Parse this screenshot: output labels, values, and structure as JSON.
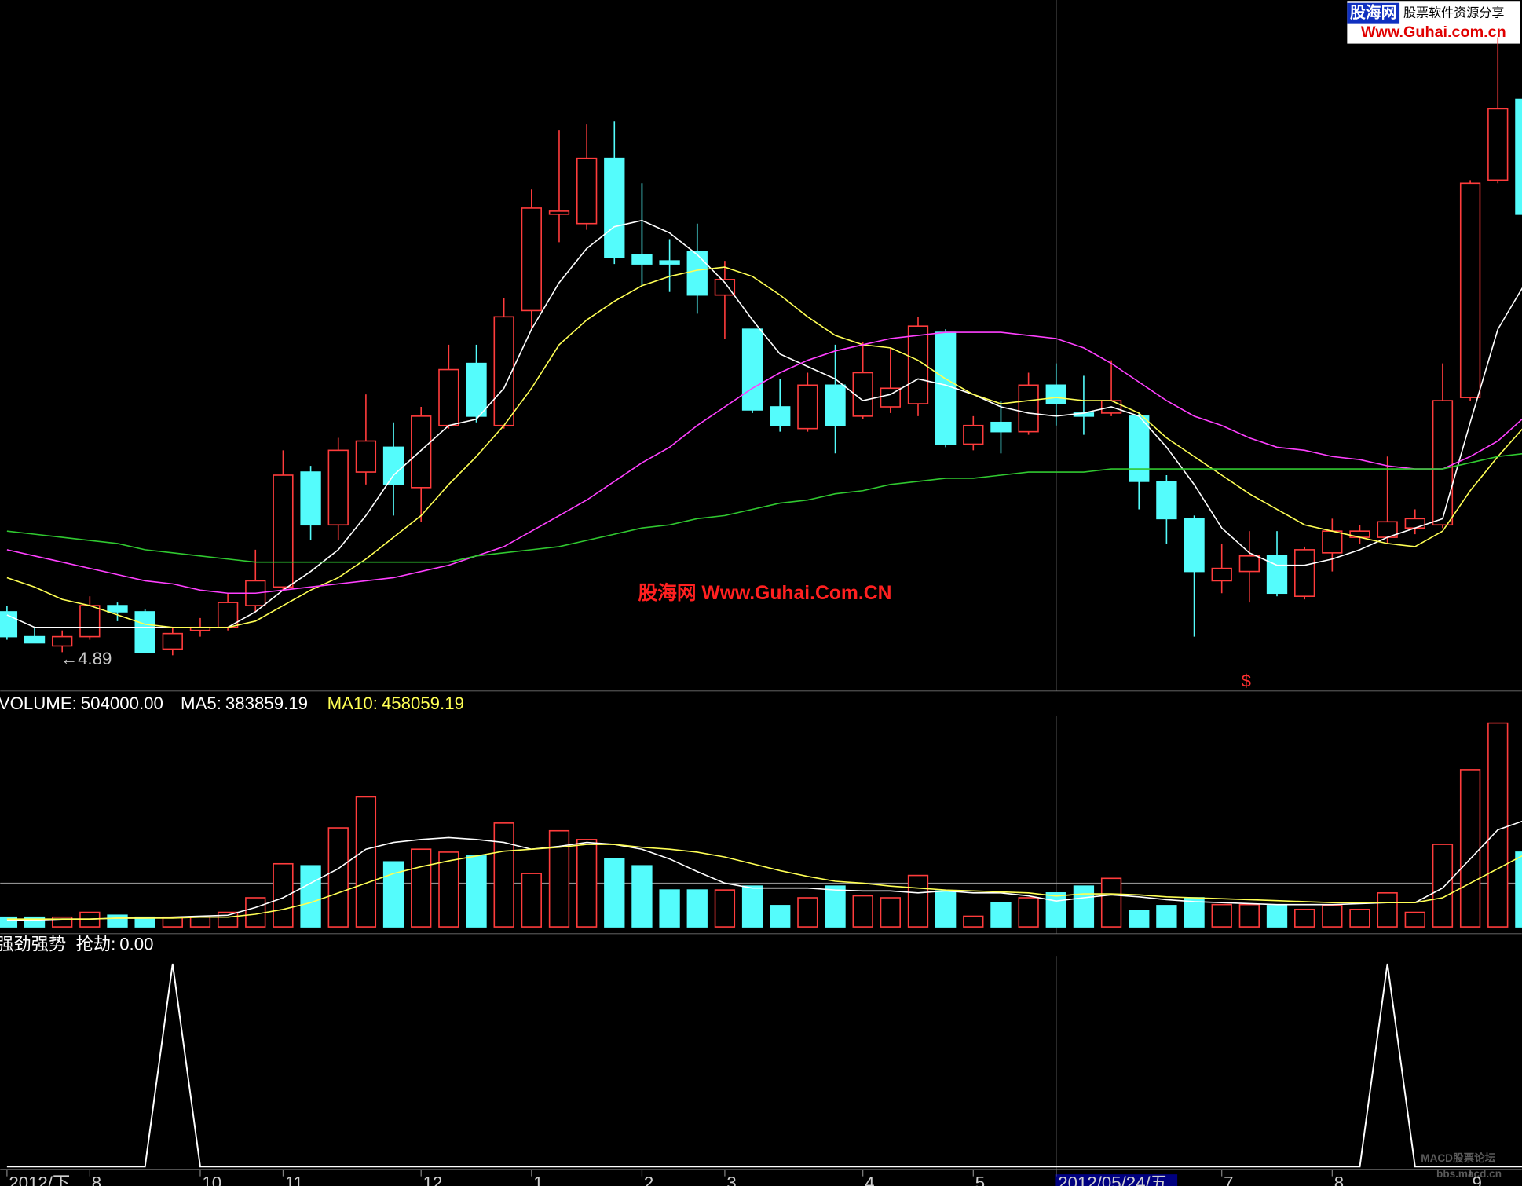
{
  "watermark": "股海网 Www.Guhai.Com.CN",
  "logo": {
    "brand": "股海网",
    "slogan": "股票软件资源分享",
    "url": "Www.Guhai.com.cn"
  },
  "forum": {
    "name": "MACD股票论坛",
    "url": "bbs.macd.cn"
  },
  "chart_data": [
    {
      "type": "candlestick",
      "open": [
        5.03,
        4.95,
        4.92,
        4.95,
        5.05,
        5.03,
        4.91,
        4.97,
        4.98,
        5.05,
        5.11,
        5.48,
        5.31,
        5.48,
        5.56,
        5.43,
        5.63,
        5.83,
        5.63,
        6.0,
        6.31,
        6.28,
        6.49,
        6.18,
        6.16,
        6.19,
        6.05,
        5.94,
        5.69,
        5.62,
        5.76,
        5.66,
        5.69,
        5.7,
        5.93,
        5.57,
        5.64,
        5.61,
        5.76,
        5.67,
        5.67,
        5.66,
        5.45,
        5.33,
        5.13,
        5.16,
        5.21,
        5.08,
        5.22,
        5.27,
        5.27,
        5.3,
        5.31,
        5.72,
        6.42,
        6.68
      ],
      "high": [
        5.05,
        4.98,
        4.97,
        5.08,
        5.06,
        5.04,
        4.98,
        5.01,
        5.09,
        5.23,
        5.55,
        5.5,
        5.59,
        5.73,
        5.64,
        5.69,
        5.89,
        5.89,
        6.04,
        6.39,
        6.58,
        6.6,
        6.61,
        6.41,
        6.23,
        6.28,
        6.16,
        5.94,
        5.78,
        5.8,
        5.89,
        5.9,
        5.88,
        5.98,
        5.94,
        5.66,
        5.71,
        5.8,
        5.83,
        5.79,
        5.84,
        5.67,
        5.47,
        5.34,
        5.25,
        5.29,
        5.29,
        5.24,
        5.33,
        5.31,
        5.53,
        5.36,
        5.83,
        6.42,
        6.88,
        6.69
      ],
      "low": [
        4.94,
        4.93,
        4.9,
        4.94,
        5.0,
        4.9,
        4.89,
        4.95,
        4.97,
        5.03,
        5.1,
        5.26,
        5.26,
        5.44,
        5.34,
        5.32,
        5.62,
        5.64,
        5.62,
        5.94,
        6.22,
        6.26,
        6.15,
        6.08,
        6.06,
        5.99,
        5.91,
        5.67,
        5.61,
        5.61,
        5.54,
        5.65,
        5.67,
        5.66,
        5.56,
        5.55,
        5.54,
        5.6,
        5.63,
        5.6,
        5.66,
        5.36,
        5.25,
        4.95,
        5.09,
        5.06,
        5.08,
        5.07,
        5.16,
        5.25,
        5.25,
        5.28,
        5.3,
        5.71,
        6.41,
        6.3
      ],
      "close": [
        4.95,
        4.93,
        4.95,
        5.05,
        5.03,
        4.9,
        4.96,
        4.98,
        5.06,
        5.13,
        5.47,
        5.31,
        5.55,
        5.58,
        5.44,
        5.66,
        5.81,
        5.66,
        5.98,
        6.33,
        6.32,
        6.49,
        6.17,
        6.15,
        6.15,
        6.05,
        6.1,
        5.68,
        5.63,
        5.76,
        5.63,
        5.8,
        5.75,
        5.95,
        5.57,
        5.63,
        5.61,
        5.76,
        5.7,
        5.66,
        5.71,
        5.45,
        5.33,
        5.16,
        5.17,
        5.21,
        5.09,
        5.23,
        5.29,
        5.29,
        5.32,
        5.33,
        5.71,
        6.41,
        6.65,
        6.31
      ],
      "ylim": [
        4.775,
        7.0
      ],
      "up_color": "#ff3c3c",
      "down_color": "#54fcfc",
      "series": [
        {
          "color": "#ffffff",
          "values": [
            5.02,
            4.98,
            4.98,
            4.98,
            4.98,
            4.98,
            4.98,
            4.98,
            4.98,
            5.03,
            5.1,
            5.16,
            5.23,
            5.34,
            5.47,
            5.55,
            5.63,
            5.65,
            5.75,
            5.94,
            6.09,
            6.2,
            6.27,
            6.29,
            6.25,
            6.18,
            6.09,
            5.97,
            5.86,
            5.82,
            5.78,
            5.71,
            5.73,
            5.78,
            5.76,
            5.73,
            5.69,
            5.67,
            5.66,
            5.67,
            5.69,
            5.66,
            5.56,
            5.44,
            5.3,
            5.22,
            5.18,
            5.18,
            5.2,
            5.23,
            5.27,
            5.3,
            5.33,
            5.64,
            5.94,
            6.09
          ]
        },
        {
          "color": "#ffff54",
          "values": [
            5.14,
            5.11,
            5.07,
            5.05,
            5.02,
            4.99,
            4.98,
            4.98,
            4.98,
            5.0,
            5.05,
            5.1,
            5.14,
            5.2,
            5.27,
            5.34,
            5.44,
            5.53,
            5.63,
            5.75,
            5.89,
            5.97,
            6.03,
            6.08,
            6.11,
            6.13,
            6.14,
            6.11,
            6.05,
            5.98,
            5.92,
            5.89,
            5.88,
            5.84,
            5.78,
            5.73,
            5.7,
            5.71,
            5.72,
            5.71,
            5.71,
            5.67,
            5.59,
            5.53,
            5.47,
            5.41,
            5.36,
            5.31,
            5.29,
            5.27,
            5.25,
            5.24,
            5.29,
            5.42,
            5.53,
            5.63
          ]
        },
        {
          "color": "#ff40ff",
          "values": [
            5.23,
            5.21,
            5.19,
            5.17,
            5.15,
            5.13,
            5.12,
            5.1,
            5.09,
            5.09,
            5.1,
            5.11,
            5.12,
            5.13,
            5.14,
            5.16,
            5.18,
            5.21,
            5.24,
            5.29,
            5.34,
            5.39,
            5.45,
            5.51,
            5.56,
            5.63,
            5.69,
            5.75,
            5.8,
            5.84,
            5.87,
            5.89,
            5.91,
            5.92,
            5.93,
            5.93,
            5.93,
            5.92,
            5.91,
            5.88,
            5.83,
            5.77,
            5.71,
            5.66,
            5.63,
            5.59,
            5.56,
            5.55,
            5.53,
            5.52,
            5.5,
            5.49,
            5.49,
            5.53,
            5.58,
            5.66
          ]
        },
        {
          "color": "#30c830",
          "values": [
            5.29,
            5.28,
            5.27,
            5.26,
            5.25,
            5.23,
            5.22,
            5.21,
            5.2,
            5.19,
            5.19,
            5.19,
            5.19,
            5.19,
            5.19,
            5.19,
            5.19,
            5.21,
            5.22,
            5.23,
            5.24,
            5.26,
            5.28,
            5.3,
            5.31,
            5.33,
            5.34,
            5.36,
            5.38,
            5.39,
            5.41,
            5.42,
            5.44,
            5.45,
            5.46,
            5.46,
            5.47,
            5.48,
            5.48,
            5.48,
            5.49,
            5.49,
            5.49,
            5.49,
            5.49,
            5.49,
            5.49,
            5.49,
            5.49,
            5.49,
            5.49,
            5.49,
            5.49,
            5.51,
            5.53,
            5.54
          ]
        }
      ],
      "annotations": [
        "←4.89",
        "$"
      ]
    },
    {
      "type": "bar",
      "ylim": [
        0,
        3096000
      ],
      "series": [
        {
          "name": "VOLUME:",
          "label": "504000.00",
          "color": "#ffffff",
          "values": [
            144000,
            144000,
            144000,
            216000,
            172800,
            144000,
            144000,
            144000,
            216000,
            432000,
            936000,
            907200,
            1468800,
            1929600,
            964800,
            1152000,
            1108800,
            1051200,
            1540800,
            792000,
            1425600,
            1296000,
            1008000,
            907200,
            547200,
            547200,
            547200,
            604800,
            316800,
            432000,
            604800,
            460800,
            432000,
            763200,
            532800,
            158400,
            360000,
            432000,
            504000,
            604800,
            720000,
            244800,
            316800,
            432000,
            331200,
            331200,
            316800,
            259200,
            316800,
            259200,
            504000,
            216000,
            1224000,
            2332800,
            3024000,
            1108800
          ]
        },
        {
          "name": "MA5:",
          "label": "383859.19",
          "color": "#ffffff",
          "values": [
            100800,
            100800,
            115200,
            115200,
            129600,
            129600,
            144000,
            158400,
            172800,
            288000,
            432000,
            648000,
            864000,
            1152000,
            1252800,
            1296000,
            1324800,
            1296000,
            1252800,
            1152000,
            1195200,
            1252800,
            1224000,
            1152000,
            1008000,
            820800,
            648000,
            576000,
            576000,
            576000,
            547200,
            532800,
            532800,
            504000,
            532800,
            504000,
            504000,
            460800,
            383859.19,
            432000,
            475200,
            446400,
            403200,
            374400,
            360000,
            345600,
            331200,
            331200,
            331200,
            345600,
            360000,
            360000,
            576000,
            1008000,
            1440000,
            1584000
          ]
        },
        {
          "name": "MA10:",
          "label": "458059.19",
          "color": "#ffff54",
          "values": [
            115200,
            115200,
            115200,
            115200,
            129600,
            129600,
            129600,
            144000,
            144000,
            187200,
            259200,
            360000,
            504000,
            648000,
            792000,
            892800,
            979200,
            1051200,
            1123200,
            1152000,
            1180800,
            1224000,
            1224000,
            1180800,
            1152000,
            1108800,
            1036800,
            936000,
            835200,
            748800,
            676800,
            648000,
            604800,
            576000,
            547200,
            532800,
            518400,
            504000,
            458059.19,
            489600,
            489600,
            475200,
            446400,
            432000,
            417600,
            403200,
            388800,
            374400,
            360000,
            360000,
            360000,
            360000,
            432000,
            648000,
            864000,
            1080000
          ]
        }
      ]
    },
    {
      "type": "line",
      "title": "强劲强势",
      "ylim": [
        0,
        1
      ],
      "categories": [
        "2012/下",
        null,
        null,
        "8",
        null,
        null,
        null,
        "10",
        null,
        null,
        "11",
        null,
        null,
        null,
        null,
        "12",
        null,
        null,
        null,
        "1",
        null,
        null,
        null,
        "2",
        null,
        null,
        "3",
        null,
        null,
        null,
        null,
        "4",
        null,
        null,
        null,
        "5",
        null,
        null,
        "2012/05/24/五",
        null,
        null,
        null,
        null,
        null,
        "7",
        null,
        null,
        null,
        "8",
        null,
        null,
        null,
        null,
        "9",
        null,
        null
      ],
      "series": [
        {
          "name": "抢劫:",
          "label": "0.00",
          "color": "#ffffff",
          "values": [
            0,
            0,
            0,
            0,
            0,
            0,
            1,
            0,
            0,
            0,
            0,
            0,
            0,
            0,
            0,
            0,
            0,
            0,
            0,
            0,
            0,
            0,
            0,
            0,
            0,
            0,
            0,
            0,
            0,
            0,
            0,
            0,
            0,
            0,
            0,
            0,
            0,
            0,
            0,
            0,
            0,
            0,
            0,
            0,
            0,
            0,
            0,
            0,
            0,
            0,
            1,
            0,
            0,
            0,
            0,
            0
          ]
        }
      ]
    }
  ]
}
